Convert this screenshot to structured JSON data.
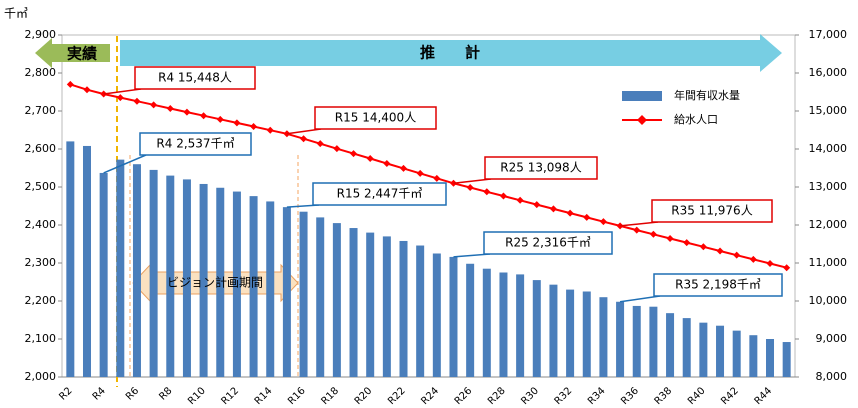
{
  "chart_data": {
    "type": "bar_line",
    "ylabel": "千㎥",
    "categories": [
      "R2",
      null,
      "R4",
      null,
      "R6",
      null,
      "R8",
      null,
      "R10",
      null,
      "R12",
      null,
      "R14",
      null,
      "R16",
      null,
      "R18",
      null,
      "R20",
      null,
      "R22",
      null,
      "R24",
      null,
      "R26",
      null,
      "R28",
      null,
      "R30",
      null,
      "R32",
      null,
      "R34",
      null,
      "R36",
      null,
      "R38",
      null,
      "R40",
      null,
      "R42",
      null,
      "R44",
      null
    ],
    "series": [
      {
        "name": "年間有収水量",
        "type": "bar",
        "color": "#4a7ebb",
        "values": [
          2620,
          2608,
          2537,
          2572,
          2560,
          2545,
          2530,
          2520,
          2508,
          2498,
          2488,
          2476,
          2462,
          2447,
          2435,
          2420,
          2405,
          2392,
          2380,
          2370,
          2358,
          2346,
          2325,
          2316,
          2298,
          2285,
          2275,
          2270,
          2255,
          2243,
          2230,
          2225,
          2210,
          2198,
          2187,
          2185,
          2168,
          2155,
          2143,
          2135,
          2122,
          2110,
          2100,
          2092
        ]
      },
      {
        "name": "給水人口",
        "type": "line",
        "axis": "y2",
        "color": "#ff0000",
        "values": [
          15700,
          15560,
          15448,
          15353,
          15257,
          15162,
          15067,
          14972,
          14876,
          14781,
          14686,
          14591,
          14495,
          14400,
          14270,
          14140,
          14009,
          13879,
          13749,
          13619,
          13489,
          13358,
          13228,
          13098,
          12986,
          12874,
          12762,
          12650,
          12537,
          12425,
          12313,
          12201,
          12088,
          11976,
          11866,
          11756,
          11646,
          11536,
          11426,
          11316,
          11206,
          11096,
          10986,
          10876
        ]
      }
    ],
    "ylim": [
      2000,
      2900
    ],
    "yticks": [
      {
        "value": 2000,
        "label": "2,000"
      },
      {
        "value": 2100,
        "label": "2,100"
      },
      {
        "value": 2200,
        "label": "2,200"
      },
      {
        "value": 2300,
        "label": "2,300"
      },
      {
        "value": 2400,
        "label": "2,400"
      },
      {
        "value": 2500,
        "label": "2,500"
      },
      {
        "value": 2600,
        "label": "2,600"
      },
      {
        "value": 2700,
        "label": "2,700"
      },
      {
        "value": 2800,
        "label": "2,800"
      },
      {
        "value": 2900,
        "label": "2,900"
      }
    ],
    "y2lim": [
      8000,
      17000
    ],
    "y2ticks": [
      {
        "value": 8000,
        "label": "8,000"
      },
      {
        "value": 9000,
        "label": "9,000"
      },
      {
        "value": 10000,
        "label": "10,000"
      },
      {
        "value": 11000,
        "label": "11,000"
      },
      {
        "value": 12000,
        "label": "12,000"
      },
      {
        "value": 13000,
        "label": "13,000"
      },
      {
        "value": 14000,
        "label": "14,000"
      },
      {
        "value": 15000,
        "label": "15,000"
      },
      {
        "value": 16000,
        "label": "16,000"
      },
      {
        "value": 17000,
        "label": "17,000"
      }
    ],
    "annotations": [
      "実績",
      "推　　計",
      "ビジョン計画期間",
      "R4  15,448人",
      "R15  14,400人",
      "R25  13,098人",
      "R35  11,976人",
      "R4  2,537千㎥",
      "R15  2,447千㎥",
      "R25  2,316千㎥",
      "R35  2,198千㎥"
    ],
    "legend": "upper right"
  }
}
